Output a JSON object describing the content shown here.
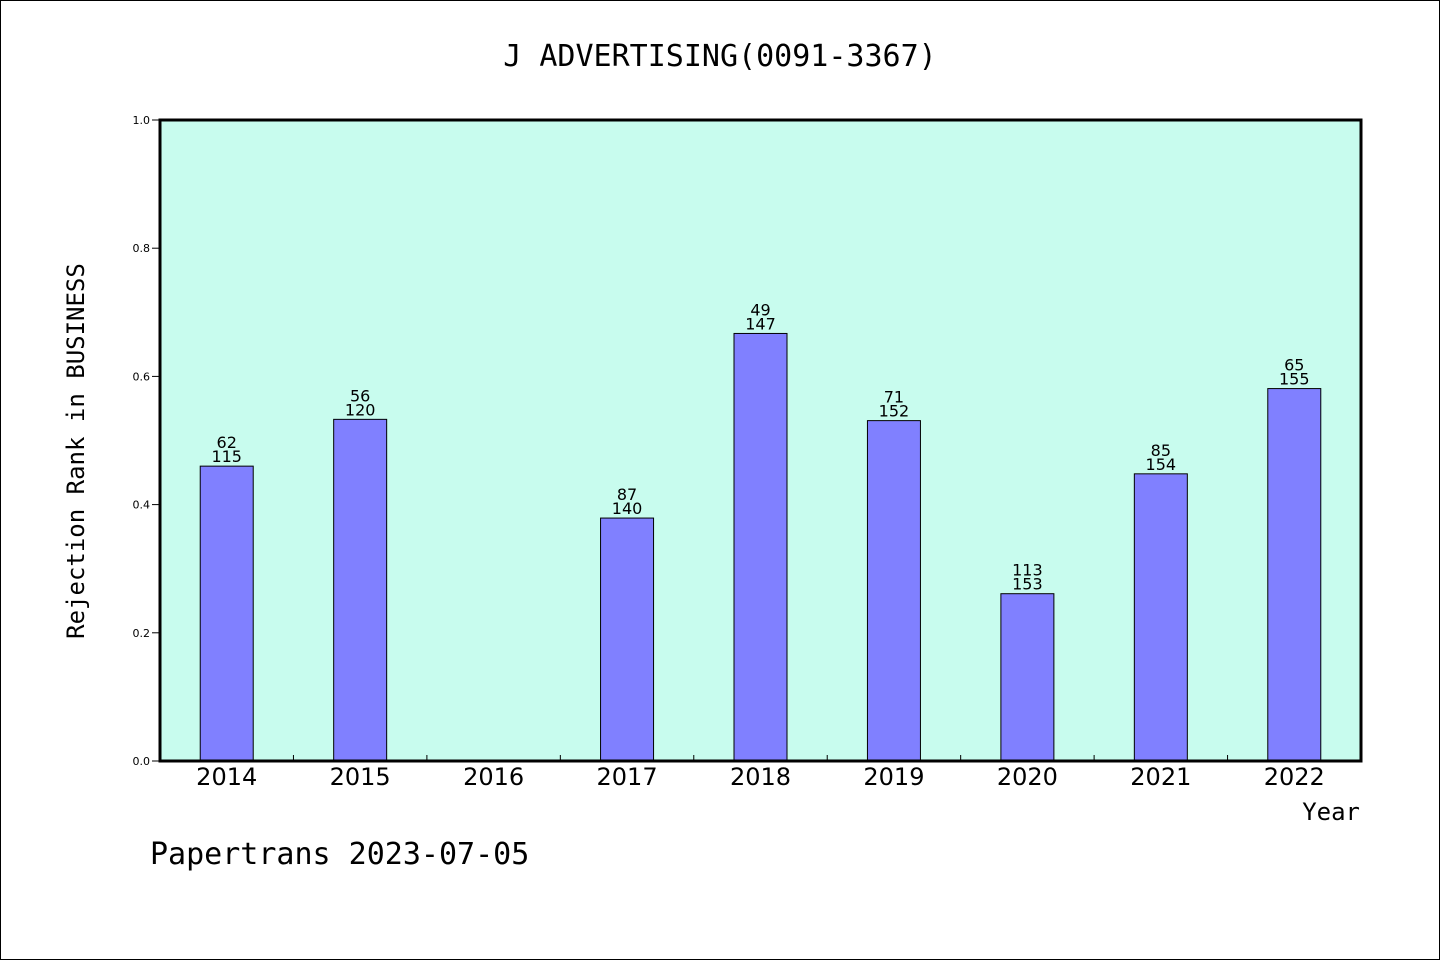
{
  "chart_data": {
    "type": "bar",
    "title": "J ADVERTISING(0091-3367)",
    "xlabel": "Year",
    "ylabel": "Rejection Rank in BUSINESS",
    "ylim": [
      0,
      1.0
    ],
    "yticks": [
      "0.0",
      "0.2",
      "0.4",
      "0.6",
      "0.8",
      "1.0"
    ],
    "categories": [
      "2014",
      "2015",
      "2016",
      "2017",
      "2018",
      "2019",
      "2020",
      "2021",
      "2022"
    ],
    "values": [
      0.46,
      0.533,
      null,
      0.379,
      0.667,
      0.531,
      0.261,
      0.448,
      0.581
    ],
    "labels_top": [
      "62",
      "56",
      "",
      "87",
      "49",
      "71",
      "113",
      "85",
      "65"
    ],
    "labels_bottom": [
      "115",
      "120",
      "",
      "140",
      "147",
      "152",
      "153",
      "154",
      "155"
    ],
    "colors": {
      "plot_background": "#c8fcee",
      "bar": "#8080ff",
      "bar_edge": "#000000"
    },
    "grid": false,
    "legend": "none"
  },
  "footer": "Papertrans 2023-07-05"
}
